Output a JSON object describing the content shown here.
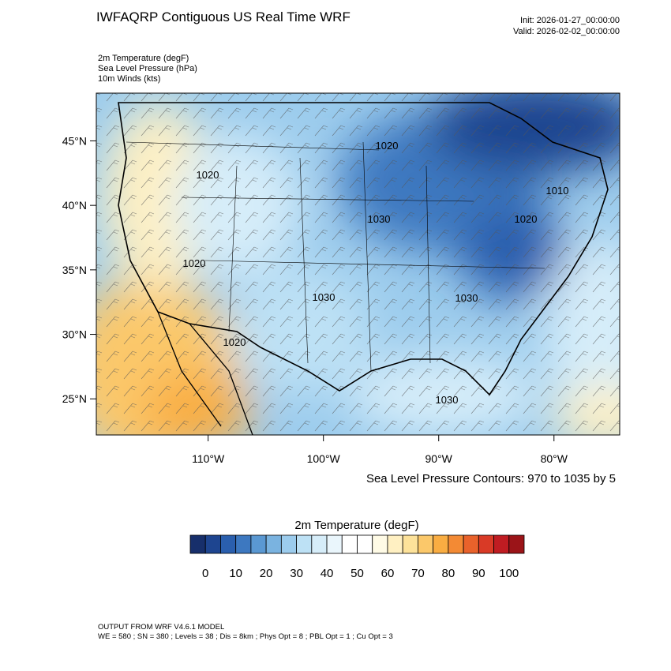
{
  "title": "IWFAQRP Contiguous US Real Time WRF",
  "init": "Init: 2026-01-27_00:00:00",
  "valid": "Valid: 2026-02-02_00:00:00",
  "fields": [
    "2m Temperature   (degF)",
    "Sea Level Pressure   (hPa)",
    "10m Winds   (kts)"
  ],
  "map": {
    "xlim": [
      -119.7,
      -74.3
    ],
    "ylim": [
      22.2,
      48.7
    ],
    "yticks": [
      {
        "value": 45,
        "label": "45°N"
      },
      {
        "value": 40,
        "label": "40°N"
      },
      {
        "value": 35,
        "label": "35°N"
      },
      {
        "value": 30,
        "label": "30°N"
      },
      {
        "value": 25,
        "label": "25°N"
      }
    ],
    "xticks": [
      {
        "value": -110,
        "label": "110°W"
      },
      {
        "value": -100,
        "label": "100°W"
      },
      {
        "value": -90,
        "label": "90°W"
      },
      {
        "value": -80,
        "label": "80°W"
      }
    ],
    "contour_labels": [
      "1020",
      "1020",
      "1030",
      "1020",
      "1020",
      "1030",
      "1030",
      "1020",
      "1030",
      "1010"
    ]
  },
  "contour_note": "Sea Level Pressure Contours: 970 to 1035 by 5",
  "colorbar": {
    "title": "2m Temperature  (degF)",
    "range": [
      -5,
      105
    ],
    "colors": [
      "#172f6b",
      "#1e4590",
      "#2a5fae",
      "#3d78c0",
      "#5a98d2",
      "#7ab3e0",
      "#9ccced",
      "#bde1f5",
      "#d6edf9",
      "#eaf6fc",
      "#ffffff",
      "#ffffff",
      "#fffbe6",
      "#fff0c2",
      "#fde29a",
      "#fbc86a",
      "#f9ad42",
      "#f38a34",
      "#e9622b",
      "#d93a26",
      "#c01c22",
      "#9b1418"
    ],
    "ticks": [
      0,
      10,
      20,
      30,
      40,
      50,
      60,
      70,
      80,
      90,
      100
    ]
  },
  "footer": [
    "OUTPUT FROM WRF V4.6.1 MODEL",
    "WE = 580 ; SN = 380 ; Levels = 38 ; Dis = 8km ; Phys Opt = 8 ; PBL Opt = 1 ; Cu Opt = 3"
  ]
}
